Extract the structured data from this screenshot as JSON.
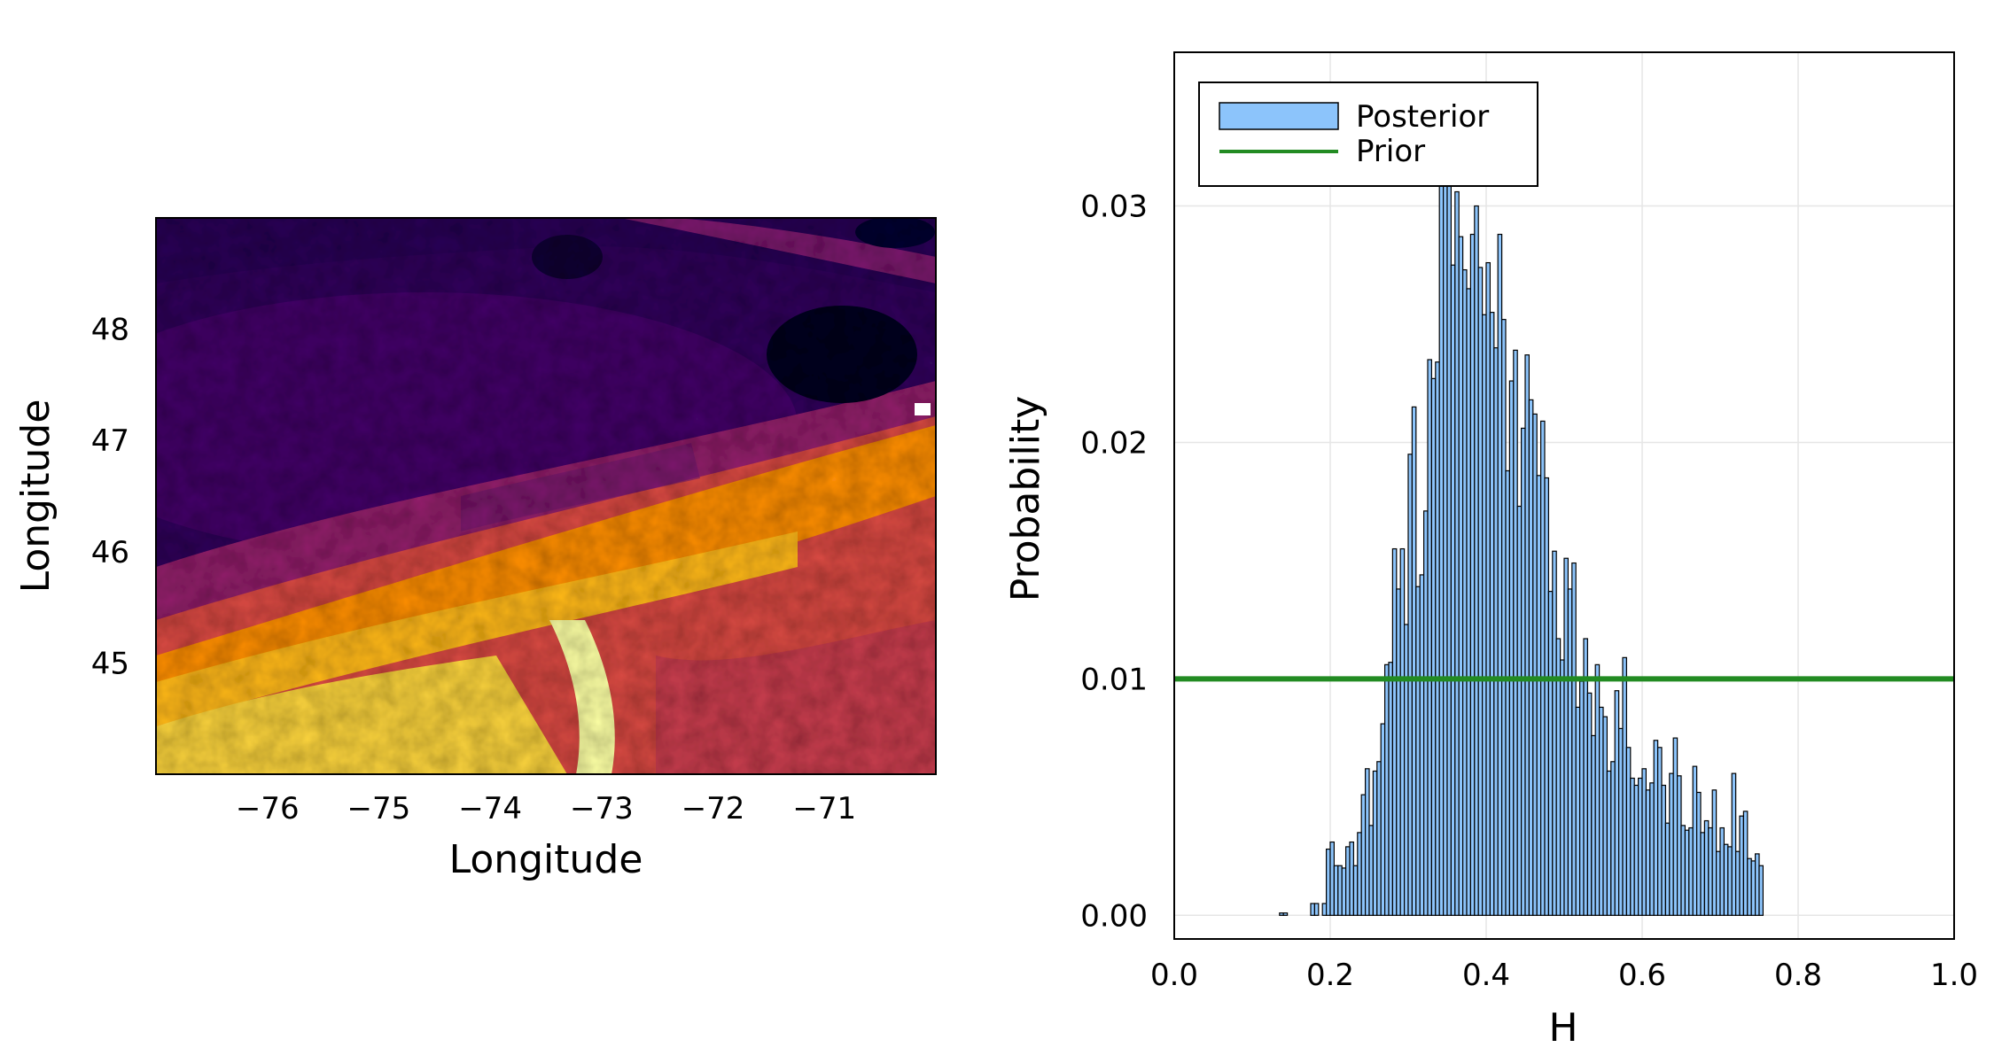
{
  "chart_data": [
    {
      "type": "heatmap",
      "title": "",
      "xlabel": "Longitude",
      "ylabel": "Longitude",
      "xlim": [
        -77.0,
        -70.0
      ],
      "ylim": [
        44.0,
        49.0
      ],
      "xticks": [
        "−76",
        "−75",
        "−74",
        "−73",
        "−72",
        "−71"
      ],
      "yticks": [
        "45",
        "46",
        "47",
        "48"
      ],
      "colormap": "inferno",
      "grid": false,
      "description": ""
    },
    {
      "type": "bar",
      "title": "",
      "xlabel": "H",
      "ylabel": "Probability",
      "xlim": [
        0.0,
        1.0
      ],
      "ylim": [
        -0.001,
        0.0365
      ],
      "xticks": [
        "0.0",
        "0.2",
        "0.4",
        "0.6",
        "0.8",
        "1.0"
      ],
      "yticks": [
        "0.00",
        "0.01",
        "0.02",
        "0.03"
      ],
      "grid": true,
      "legend_position": "top-left",
      "bin_width": 0.005,
      "bin_start": 0.0,
      "series": [
        {
          "name": "Posterior",
          "color": "#8cc4fb",
          "values": [
            0,
            0,
            0,
            0,
            0,
            0,
            0,
            0,
            0,
            0,
            0,
            0,
            0,
            0,
            0,
            0,
            0,
            0,
            0,
            0,
            0,
            0,
            0,
            0,
            0,
            0,
            0,
            0.0001,
            0.0001,
            0,
            0,
            0,
            0,
            0,
            0,
            0.0005,
            0.0005,
            0,
            0.0005,
            0.0028,
            0.0031,
            0.0021,
            0.0021,
            0.002,
            0.0029,
            0.0031,
            0.0021,
            0.0035,
            0.0051,
            0.0062,
            0.0038,
            0.0061,
            0.0065,
            0.0081,
            0.0106,
            0.0107,
            0.0155,
            0.0138,
            0.0155,
            0.0123,
            0.0195,
            0.0215,
            0.0139,
            0.0144,
            0.0171,
            0.0235,
            0.0227,
            0.0234,
            0.0351,
            0.0338,
            0.0328,
            0.0275,
            0.0306,
            0.0287,
            0.0273,
            0.0265,
            0.0288,
            0.03,
            0.0274,
            0.0254,
            0.0276,
            0.0255,
            0.024,
            0.0288,
            0.0252,
            0.0188,
            0.0226,
            0.0239,
            0.0173,
            0.0206,
            0.0237,
            0.0218,
            0.0212,
            0.0186,
            0.0209,
            0.0185,
            0.0137,
            0.0154,
            0.0117,
            0.0108,
            0.0151,
            0.0138,
            0.0149,
            0.0088,
            0.0099,
            0.0117,
            0.0094,
            0.0076,
            0.0106,
            0.0088,
            0.0084,
            0.0061,
            0.0065,
            0.0095,
            0.0079,
            0.0109,
            0.0071,
            0.0058,
            0.0055,
            0.0058,
            0.0062,
            0.0053,
            0.0056,
            0.0074,
            0.0071,
            0.0055,
            0.0039,
            0.006,
            0.0075,
            0.0059,
            0.0038,
            0.0036,
            0.0037,
            0.0063,
            0.0052,
            0.0035,
            0.004,
            0.0037,
            0.0053,
            0.0027,
            0.0037,
            0.003,
            0.0029,
            0.006,
            0.0027,
            0.0042,
            0.0044,
            0.0024,
            0.0023,
            0.0026,
            0.0021
          ]
        },
        {
          "name": "Prior",
          "color": "#228b22",
          "type": "line",
          "x": [
            0.0,
            1.0
          ],
          "values": [
            0.01,
            0.01
          ]
        }
      ]
    }
  ]
}
